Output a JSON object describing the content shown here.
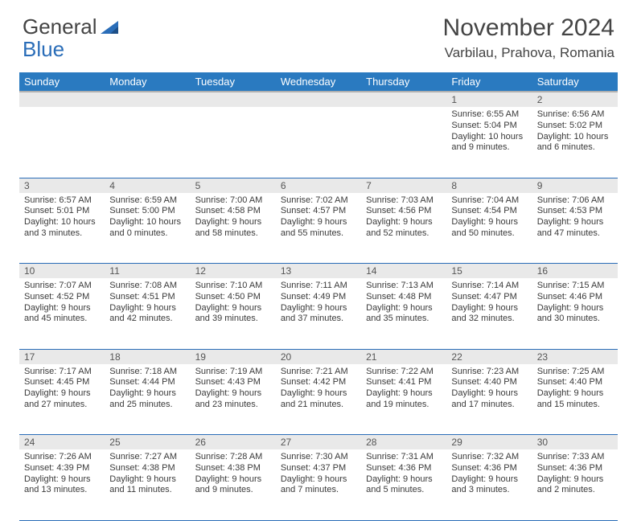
{
  "logo": {
    "text_a": "General",
    "text_b": "Blue"
  },
  "title": "November 2024",
  "location": "Varbilau, Prahova, Romania",
  "colors": {
    "header_bg": "#2a7ac0",
    "header_text": "#ffffff",
    "daynum_bg": "#e9e9e9",
    "rule": "#2a6db8",
    "text": "#3a3a3a"
  },
  "day_headers": [
    "Sunday",
    "Monday",
    "Tuesday",
    "Wednesday",
    "Thursday",
    "Friday",
    "Saturday"
  ],
  "weeks": [
    [
      null,
      null,
      null,
      null,
      null,
      {
        "n": "1",
        "sr": "6:55 AM",
        "ss": "5:04 PM",
        "dl": "10 hours and 9 minutes."
      },
      {
        "n": "2",
        "sr": "6:56 AM",
        "ss": "5:02 PM",
        "dl": "10 hours and 6 minutes."
      }
    ],
    [
      {
        "n": "3",
        "sr": "6:57 AM",
        "ss": "5:01 PM",
        "dl": "10 hours and 3 minutes."
      },
      {
        "n": "4",
        "sr": "6:59 AM",
        "ss": "5:00 PM",
        "dl": "10 hours and 0 minutes."
      },
      {
        "n": "5",
        "sr": "7:00 AM",
        "ss": "4:58 PM",
        "dl": "9 hours and 58 minutes."
      },
      {
        "n": "6",
        "sr": "7:02 AM",
        "ss": "4:57 PM",
        "dl": "9 hours and 55 minutes."
      },
      {
        "n": "7",
        "sr": "7:03 AM",
        "ss": "4:56 PM",
        "dl": "9 hours and 52 minutes."
      },
      {
        "n": "8",
        "sr": "7:04 AM",
        "ss": "4:54 PM",
        "dl": "9 hours and 50 minutes."
      },
      {
        "n": "9",
        "sr": "7:06 AM",
        "ss": "4:53 PM",
        "dl": "9 hours and 47 minutes."
      }
    ],
    [
      {
        "n": "10",
        "sr": "7:07 AM",
        "ss": "4:52 PM",
        "dl": "9 hours and 45 minutes."
      },
      {
        "n": "11",
        "sr": "7:08 AM",
        "ss": "4:51 PM",
        "dl": "9 hours and 42 minutes."
      },
      {
        "n": "12",
        "sr": "7:10 AM",
        "ss": "4:50 PM",
        "dl": "9 hours and 39 minutes."
      },
      {
        "n": "13",
        "sr": "7:11 AM",
        "ss": "4:49 PM",
        "dl": "9 hours and 37 minutes."
      },
      {
        "n": "14",
        "sr": "7:13 AM",
        "ss": "4:48 PM",
        "dl": "9 hours and 35 minutes."
      },
      {
        "n": "15",
        "sr": "7:14 AM",
        "ss": "4:47 PM",
        "dl": "9 hours and 32 minutes."
      },
      {
        "n": "16",
        "sr": "7:15 AM",
        "ss": "4:46 PM",
        "dl": "9 hours and 30 minutes."
      }
    ],
    [
      {
        "n": "17",
        "sr": "7:17 AM",
        "ss": "4:45 PM",
        "dl": "9 hours and 27 minutes."
      },
      {
        "n": "18",
        "sr": "7:18 AM",
        "ss": "4:44 PM",
        "dl": "9 hours and 25 minutes."
      },
      {
        "n": "19",
        "sr": "7:19 AM",
        "ss": "4:43 PM",
        "dl": "9 hours and 23 minutes."
      },
      {
        "n": "20",
        "sr": "7:21 AM",
        "ss": "4:42 PM",
        "dl": "9 hours and 21 minutes."
      },
      {
        "n": "21",
        "sr": "7:22 AM",
        "ss": "4:41 PM",
        "dl": "9 hours and 19 minutes."
      },
      {
        "n": "22",
        "sr": "7:23 AM",
        "ss": "4:40 PM",
        "dl": "9 hours and 17 minutes."
      },
      {
        "n": "23",
        "sr": "7:25 AM",
        "ss": "4:40 PM",
        "dl": "9 hours and 15 minutes."
      }
    ],
    [
      {
        "n": "24",
        "sr": "7:26 AM",
        "ss": "4:39 PM",
        "dl": "9 hours and 13 minutes."
      },
      {
        "n": "25",
        "sr": "7:27 AM",
        "ss": "4:38 PM",
        "dl": "9 hours and 11 minutes."
      },
      {
        "n": "26",
        "sr": "7:28 AM",
        "ss": "4:38 PM",
        "dl": "9 hours and 9 minutes."
      },
      {
        "n": "27",
        "sr": "7:30 AM",
        "ss": "4:37 PM",
        "dl": "9 hours and 7 minutes."
      },
      {
        "n": "28",
        "sr": "7:31 AM",
        "ss": "4:36 PM",
        "dl": "9 hours and 5 minutes."
      },
      {
        "n": "29",
        "sr": "7:32 AM",
        "ss": "4:36 PM",
        "dl": "9 hours and 3 minutes."
      },
      {
        "n": "30",
        "sr": "7:33 AM",
        "ss": "4:36 PM",
        "dl": "9 hours and 2 minutes."
      }
    ]
  ],
  "labels": {
    "sunrise": "Sunrise: ",
    "sunset": "Sunset: ",
    "daylight": "Daylight: "
  }
}
